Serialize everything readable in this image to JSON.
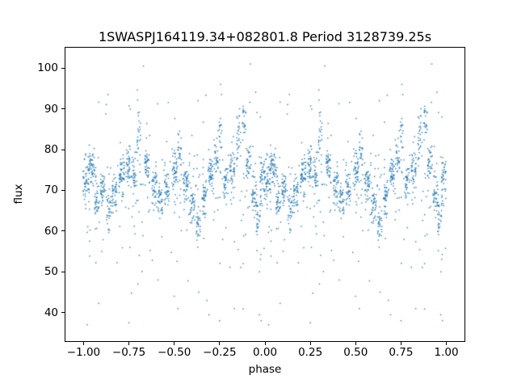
{
  "chart_data": {
    "type": "scatter",
    "title": "1SWASPJ164119.34+082801.8 Period 3128739.25s",
    "xlabel": "phase",
    "ylabel": "flux",
    "xlim": [
      -1.1,
      1.1
    ],
    "ylim": [
      33,
      105
    ],
    "xtick_labels": [
      "−1.00",
      "−0.75",
      "−0.50",
      "−0.25",
      "0.00",
      "0.25",
      "0.50",
      "0.75",
      "1.00"
    ],
    "xtick_values": [
      -1.0,
      -0.75,
      -0.5,
      -0.25,
      0.0,
      0.25,
      0.5,
      0.75,
      1.0
    ],
    "ytick_labels": [
      "40",
      "50",
      "60",
      "70",
      "80",
      "90",
      "100"
    ],
    "ytick_values": [
      40,
      50,
      60,
      70,
      80,
      90,
      100
    ],
    "grid": false,
    "legend": null,
    "marker_color": "#1f77b4",
    "marker_alpha": 0.85,
    "marker_size_px": 1.5,
    "phase_folded_duplicate": true,
    "seed": 20240613,
    "cluster_fields": [
      "phase",
      "flux_mean",
      "count",
      "phase_halfwidth",
      "flux_sigma"
    ],
    "clusters": [
      [
        0.015,
        72.5,
        55,
        0.018,
        2.6
      ],
      [
        0.045,
        75.5,
        45,
        0.014,
        2.0
      ],
      [
        0.075,
        67.5,
        40,
        0.014,
        2.4
      ],
      [
        0.105,
        71.0,
        35,
        0.012,
        2.0
      ],
      [
        0.14,
        65.0,
        28,
        0.012,
        2.2
      ],
      [
        0.17,
        70.0,
        38,
        0.014,
        2.4
      ],
      [
        0.21,
        74.0,
        42,
        0.014,
        2.0
      ],
      [
        0.245,
        77.0,
        38,
        0.012,
        2.0
      ],
      [
        0.28,
        73.0,
        32,
        0.012,
        2.4
      ],
      [
        0.305,
        82.0,
        26,
        0.01,
        3.8
      ],
      [
        0.35,
        76.0,
        42,
        0.014,
        2.0
      ],
      [
        0.39,
        72.0,
        38,
        0.014,
        2.0
      ],
      [
        0.425,
        68.0,
        32,
        0.012,
        2.0
      ],
      [
        0.46,
        70.0,
        38,
        0.014,
        2.4
      ],
      [
        0.5,
        75.0,
        46,
        0.014,
        2.4
      ],
      [
        0.53,
        80.0,
        22,
        0.01,
        2.4
      ],
      [
        0.565,
        72.0,
        38,
        0.014,
        2.0
      ],
      [
        0.6,
        66.0,
        38,
        0.014,
        2.4
      ],
      [
        0.635,
        61.5,
        26,
        0.012,
        2.0
      ],
      [
        0.665,
        68.0,
        38,
        0.014,
        2.4
      ],
      [
        0.7,
        74.0,
        42,
        0.014,
        2.0
      ],
      [
        0.73,
        78.0,
        28,
        0.012,
        3.0
      ],
      [
        0.755,
        85.0,
        18,
        0.008,
        4.2
      ],
      [
        0.785,
        72.0,
        34,
        0.012,
        2.0
      ],
      [
        0.82,
        75.0,
        38,
        0.014,
        2.4
      ],
      [
        0.855,
        83.0,
        28,
        0.012,
        3.0
      ],
      [
        0.885,
        87.5,
        22,
        0.01,
        1.8
      ],
      [
        0.91,
        77.0,
        38,
        0.014,
        2.4
      ],
      [
        0.94,
        70.0,
        38,
        0.014,
        2.4
      ],
      [
        0.965,
        62.5,
        24,
        0.01,
        2.6
      ],
      [
        0.985,
        72.5,
        38,
        0.012,
        2.6
      ]
    ],
    "outliers_high": [
      [
        0.33,
        100.5
      ],
      [
        0.92,
        101.0
      ],
      [
        0.135,
        93.5
      ],
      [
        0.3,
        89.0
      ],
      [
        0.86,
        90.0
      ],
      [
        0.755,
        96.0
      ],
      [
        0.76,
        93.5
      ],
      [
        0.53,
        84.5
      ],
      [
        0.975,
        88.0
      ]
    ],
    "outliers_low": [
      [
        0.5,
        44.0
      ],
      [
        0.52,
        41.0
      ],
      [
        0.25,
        37.5
      ],
      [
        0.02,
        37.0
      ],
      [
        0.75,
        38.0
      ],
      [
        0.635,
        45.0
      ],
      [
        0.41,
        48.0
      ],
      [
        0.97,
        50.0
      ],
      [
        0.88,
        52.0
      ],
      [
        0.68,
        43.0
      ],
      [
        0.3,
        47.0
      ],
      [
        0.1,
        55.0
      ]
    ],
    "background_scatter": {
      "count": 240,
      "flux_mean": 70,
      "flux_sigma": 7,
      "low_tail_count": 20,
      "low_tail_range": [
        38,
        56
      ],
      "high_tail_count": 12,
      "high_tail_range": [
        86,
        95
      ]
    }
  }
}
